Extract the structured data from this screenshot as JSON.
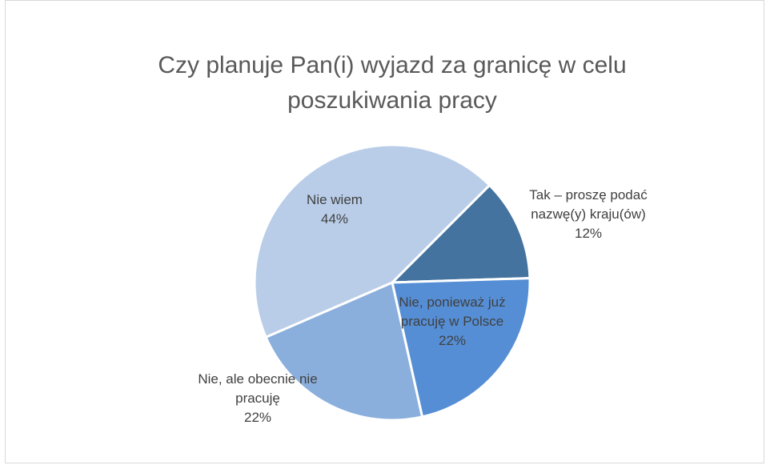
{
  "chart_data": {
    "type": "pie",
    "title": "Czy planuje Pan(i) wyjazd za granicę w celu poszukiwania pracy",
    "categories": [
      "Tak – proszę podać nazwę(y) kraju(ów)",
      "Nie, ponieważ już pracuję w Polsce",
      "Nie, ale obecnie nie pracuję",
      "Nie wiem"
    ],
    "values": [
      12,
      22,
      22,
      44
    ],
    "value_labels": [
      "12%",
      "22%",
      "22%",
      "44%"
    ],
    "colors": [
      "#44739f",
      "#558ed5",
      "#8aafdc",
      "#b9cde8"
    ]
  }
}
